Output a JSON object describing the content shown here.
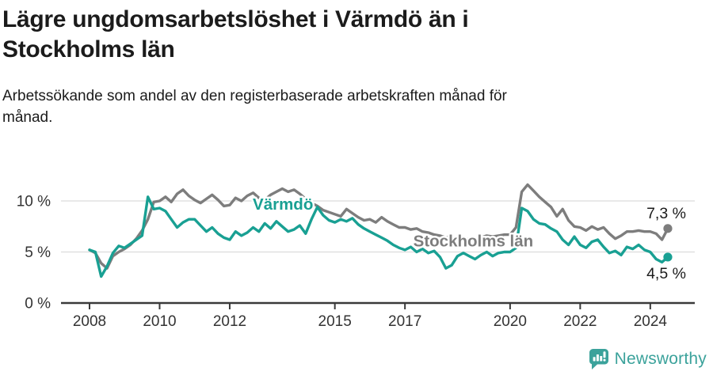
{
  "header": {
    "title": "Lägre ungdomsarbetslöshet i Värmdö än i Stockholms län",
    "subtitle": "Arbetssökande som andel av den registerbaserade arbetskraften månad för månad."
  },
  "chart_data": {
    "type": "line",
    "x_unit": "year",
    "x_start": 2008.0,
    "x_step": 0.1666667,
    "xlim": [
      2007.2,
      2025.3
    ],
    "ylim": [
      0,
      12.4
    ],
    "grid": "horizontal",
    "legend_position": "labels-on-lines",
    "y_ticks": [
      {
        "label": "0 %",
        "value": 0
      },
      {
        "label": "5 %",
        "value": 5
      },
      {
        "label": "10 %",
        "value": 10
      }
    ],
    "x_ticks": [
      {
        "label": "2008",
        "year": 2008
      },
      {
        "label": "2010",
        "year": 2010
      },
      {
        "label": "2012",
        "year": 2012
      },
      {
        "label": "2015",
        "year": 2015
      },
      {
        "label": "2017",
        "year": 2017
      },
      {
        "label": "2020",
        "year": 2020
      },
      {
        "label": "2022",
        "year": 2022
      },
      {
        "label": "2024",
        "year": 2024
      }
    ],
    "series": [
      {
        "name": "Stockholms län",
        "color": "#7d7d7d",
        "end_label": "7,3 %",
        "end_label_position": "above",
        "label_at": {
          "year": 2018.95,
          "value": 6.1
        },
        "values": [
          5.2,
          4.9,
          3.9,
          3.4,
          4.6,
          5.0,
          5.3,
          5.7,
          6.3,
          7.1,
          8.2,
          9.9,
          10.0,
          10.4,
          9.9,
          10.7,
          11.1,
          10.5,
          10.1,
          9.8,
          10.2,
          10.6,
          10.1,
          9.5,
          9.6,
          10.3,
          10.0,
          10.5,
          10.8,
          10.3,
          10.1,
          10.6,
          10.9,
          11.2,
          10.9,
          11.1,
          10.7,
          10.2,
          9.8,
          9.5,
          9.1,
          8.9,
          8.7,
          8.5,
          9.2,
          8.8,
          8.4,
          8.1,
          8.2,
          7.9,
          8.4,
          8.0,
          7.7,
          7.4,
          7.4,
          7.2,
          7.3,
          7.0,
          6.9,
          6.7,
          6.6,
          6.4,
          6.5,
          6.3,
          6.2,
          6.3,
          6.2,
          6.4,
          6.6,
          6.5,
          6.6,
          6.7,
          6.7,
          7.4,
          10.9,
          11.6,
          11.0,
          10.4,
          9.9,
          9.4,
          8.5,
          9.2,
          8.1,
          7.5,
          7.4,
          7.1,
          7.5,
          7.2,
          7.4,
          6.8,
          6.3,
          6.6,
          7.0,
          7.0,
          7.1,
          7.0,
          7.0,
          6.8,
          6.2,
          7.3
        ]
      },
      {
        "name": "Värmdö",
        "color": "#19A093",
        "end_label": "4,5 %",
        "end_label_position": "below",
        "label_at": {
          "year": 2013.52,
          "value": 9.7
        },
        "values": [
          5.2,
          5.0,
          2.6,
          3.6,
          4.9,
          5.6,
          5.4,
          5.8,
          6.2,
          6.6,
          10.4,
          9.2,
          9.3,
          9.0,
          8.2,
          7.4,
          7.9,
          8.2,
          8.2,
          7.6,
          7.0,
          7.4,
          6.8,
          6.4,
          6.2,
          7.0,
          6.6,
          6.9,
          7.4,
          7.0,
          7.8,
          7.3,
          8.0,
          7.5,
          7.0,
          7.2,
          7.6,
          6.8,
          8.2,
          9.4,
          8.6,
          8.1,
          7.9,
          8.2,
          8.0,
          8.3,
          7.7,
          7.3,
          7.0,
          6.7,
          6.4,
          6.1,
          5.7,
          5.4,
          5.2,
          5.5,
          5.0,
          5.3,
          4.9,
          5.1,
          4.5,
          3.4,
          3.7,
          4.6,
          4.9,
          4.6,
          4.3,
          4.7,
          5.0,
          4.6,
          4.9,
          5.0,
          5.0,
          5.4,
          9.3,
          9.0,
          8.2,
          7.8,
          7.7,
          7.3,
          7.0,
          6.2,
          5.7,
          6.5,
          5.7,
          5.4,
          6.0,
          6.2,
          5.5,
          4.9,
          5.1,
          4.7,
          5.5,
          5.3,
          5.7,
          5.2,
          5.0,
          4.3,
          4.0,
          4.5
        ]
      }
    ],
    "style": {
      "axis_color": "#3a3a3a",
      "grid_color": "#dcdcdc",
      "tick_label_color": "#333333",
      "end_label_color": "#1b1b1b"
    }
  },
  "footer": {
    "brand": "Newsworthy",
    "brand_color": "#3BA29B"
  }
}
